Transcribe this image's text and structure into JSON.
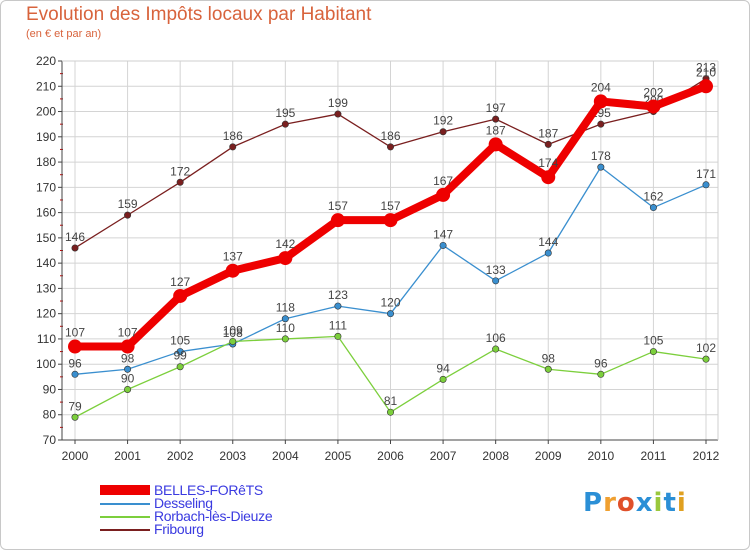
{
  "title": "Evolution des Impôts locaux par Habitant",
  "subtitle": "(en € et par an)",
  "logo": {
    "text": "Proxiti",
    "letter_colors": [
      "#2b8fd6",
      "#f0a030",
      "#e0502a",
      "#2b8fd6",
      "#9ac83c",
      "#2b8fd6",
      "#e0a020"
    ]
  },
  "chart_data": {
    "type": "line",
    "title": "Evolution des Impôts locaux par Habitant",
    "subtitle": "(en € et par an)",
    "xlabel": "",
    "ylabel": "",
    "x": [
      "2000",
      "2001",
      "2002",
      "2003",
      "2004",
      "2005",
      "2006",
      "2007",
      "2008",
      "2009",
      "2010",
      "2011",
      "2012"
    ],
    "ylim": [
      70,
      220
    ],
    "yticks": [
      70,
      80,
      90,
      100,
      110,
      120,
      130,
      140,
      150,
      160,
      170,
      180,
      190,
      200,
      210,
      220
    ],
    "legend_position": "bottom-left",
    "series": [
      {
        "name": "Fribourg",
        "color": "#7a1f1f",
        "values": [
          146,
          159,
          172,
          186,
          195,
          199,
          186,
          192,
          197,
          187,
          195,
          200,
          213
        ],
        "value_labels": [
          "146",
          "159",
          "172",
          "186",
          "195",
          "199",
          "186",
          "192",
          "197",
          "187",
          "195",
          "200",
          "213"
        ]
      },
      {
        "name": "Desseling",
        "color": "#3a8fcf",
        "values": [
          96,
          98,
          105,
          108,
          118,
          123,
          120,
          147,
          133,
          144,
          178,
          162,
          171
        ],
        "value_labels": [
          "96",
          "98",
          "105",
          "108",
          "118",
          "123",
          "120",
          "147",
          "133",
          "144",
          "178",
          "162",
          "171"
        ]
      },
      {
        "name": "Rorbach-lès-Dieuze",
        "color": "#7ccf3c",
        "values": [
          79,
          90,
          99,
          109,
          110,
          111,
          81,
          94,
          106,
          98,
          96,
          105,
          102
        ],
        "value_labels": [
          "79",
          "90",
          "99",
          "109",
          "110",
          "111",
          "81",
          "94",
          "106",
          "98",
          "96",
          "105",
          "102"
        ]
      },
      {
        "name": "BELLES-FORêTS",
        "color": "#ee0000",
        "values": [
          107,
          107,
          127,
          137,
          142,
          157,
          157,
          167,
          187,
          174,
          204,
          202,
          210
        ],
        "value_labels": [
          "107",
          "107",
          "127",
          "137",
          "142",
          "157",
          "157",
          "167",
          "187",
          "174",
          "204",
          "202",
          "210"
        ]
      }
    ]
  },
  "legend": [
    {
      "name": "BELLES-FORêTS",
      "color": "#ee0000",
      "thick": true
    },
    {
      "name": "Desseling",
      "color": "#3a8fcf",
      "thick": false
    },
    {
      "name": "Rorbach-lès-Dieuze",
      "color": "#7ccf3c",
      "thick": false
    },
    {
      "name": "Fribourg",
      "color": "#7a1f1f",
      "thick": false
    }
  ]
}
